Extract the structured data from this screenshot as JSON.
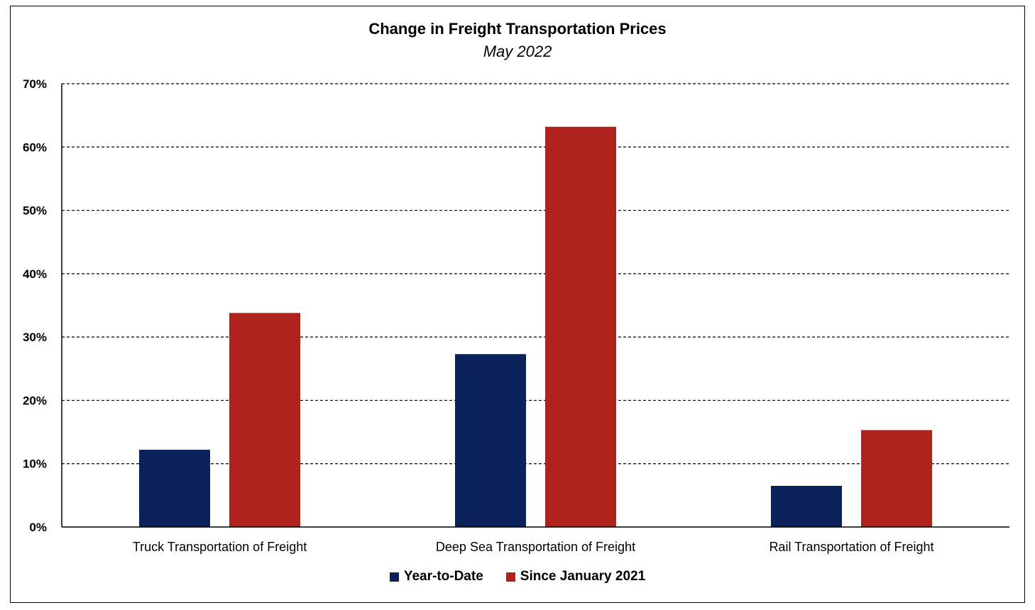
{
  "chart_data": {
    "type": "bar",
    "title": "Change in Freight Transportation Prices",
    "subtitle": "May 2022",
    "categories": [
      "Truck Transportation of Freight",
      "Deep Sea Transportation of Freight",
      "Rail Transportation of Freight"
    ],
    "series": [
      {
        "name": "Year-to-Date",
        "color": "#0a215a",
        "values": [
          12.2,
          27.3,
          6.5
        ]
      },
      {
        "name": "Since January 2021",
        "color": "#b0231d",
        "values": [
          33.8,
          63.2,
          15.3
        ]
      }
    ],
    "ylim": [
      0,
      70
    ],
    "yticks": [
      0,
      10,
      20,
      30,
      40,
      50,
      60,
      70
    ],
    "ytick_labels": [
      "0%",
      "10%",
      "20%",
      "30%",
      "40%",
      "50%",
      "60%",
      "70%"
    ],
    "xlabel": "",
    "ylabel": "",
    "grid": true,
    "grid_style": "dashed",
    "legend_position": "bottom"
  }
}
